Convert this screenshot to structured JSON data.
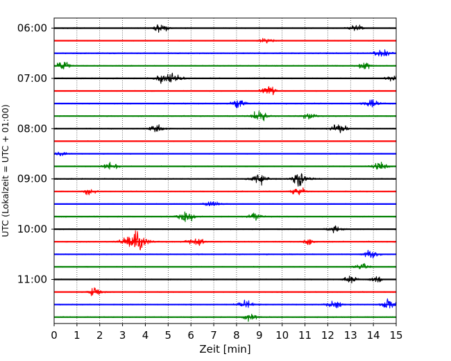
{
  "chart_data": {
    "type": "line",
    "title": "",
    "xlabel": "Zeit  [min]",
    "ylabel": "UTC (Lokalzeit = UTC + 01:00)",
    "xlim": [
      0,
      15
    ],
    "x_ticks": [
      0,
      1,
      2,
      3,
      4,
      5,
      6,
      7,
      8,
      9,
      10,
      11,
      12,
      13,
      14,
      15
    ],
    "y_tick_labels": [
      "06:00",
      "07:00",
      "08:00",
      "09:00",
      "10:00",
      "11:00"
    ],
    "grid": "vertical dotted lines at each minute",
    "trace_colors": [
      "#000000",
      "#ff0000",
      "#0000ff",
      "#008000"
    ],
    "traces": [
      {
        "start": "06:00",
        "color": "#000000",
        "amplitude": 0.22,
        "events": [
          [
            4.7,
            1.0
          ],
          [
            13.2,
            0.8
          ]
        ]
      },
      {
        "start": "06:15",
        "color": "#ff0000",
        "amplitude": 0.2,
        "events": [
          [
            9.3,
            0.8
          ]
        ]
      },
      {
        "start": "06:30",
        "color": "#0000ff",
        "amplitude": 0.28,
        "events": [
          [
            14.4,
            1.0
          ]
        ]
      },
      {
        "start": "06:45",
        "color": "#008000",
        "amplitude": 0.24,
        "events": [
          [
            0.4,
            1.0
          ],
          [
            13.6,
            0.8
          ]
        ]
      },
      {
        "start": "07:00",
        "color": "#000000",
        "amplitude": 0.26,
        "events": [
          [
            4.8,
            1.2
          ],
          [
            5.3,
            1.0
          ],
          [
            14.9,
            0.8
          ]
        ]
      },
      {
        "start": "07:15",
        "color": "#ff0000",
        "amplitude": 0.22,
        "events": [
          [
            9.4,
            1.0
          ]
        ]
      },
      {
        "start": "07:30",
        "color": "#0000ff",
        "amplitude": 0.28,
        "events": [
          [
            8.1,
            1.0
          ],
          [
            13.9,
            1.0
          ]
        ]
      },
      {
        "start": "07:45",
        "color": "#008000",
        "amplitude": 0.26,
        "events": [
          [
            9.0,
            1.3
          ],
          [
            11.2,
            0.8
          ]
        ]
      },
      {
        "start": "08:00",
        "color": "#000000",
        "amplitude": 0.22,
        "events": [
          [
            4.5,
            1.0
          ],
          [
            12.5,
            1.0
          ]
        ]
      },
      {
        "start": "08:15",
        "color": "#ff0000",
        "amplitude": 0.2,
        "events": []
      },
      {
        "start": "08:30",
        "color": "#0000ff",
        "amplitude": 0.22,
        "events": [
          [
            0.3,
            0.6
          ]
        ]
      },
      {
        "start": "08:45",
        "color": "#008000",
        "amplitude": 0.26,
        "events": [
          [
            2.5,
            1.0
          ],
          [
            14.3,
            1.0
          ]
        ]
      },
      {
        "start": "09:00",
        "color": "#000000",
        "amplitude": 0.26,
        "events": [
          [
            9.0,
            1.2
          ],
          [
            10.8,
            1.6
          ]
        ]
      },
      {
        "start": "09:15",
        "color": "#ff0000",
        "amplitude": 0.22,
        "events": [
          [
            1.5,
            0.8
          ],
          [
            10.7,
            1.0
          ]
        ]
      },
      {
        "start": "09:30",
        "color": "#0000ff",
        "amplitude": 0.22,
        "events": [
          [
            6.9,
            0.8
          ]
        ]
      },
      {
        "start": "09:45",
        "color": "#008000",
        "amplitude": 0.26,
        "events": [
          [
            5.8,
            1.2
          ],
          [
            8.8,
            0.8
          ]
        ]
      },
      {
        "start": "10:00",
        "color": "#000000",
        "amplitude": 0.24,
        "events": [
          [
            12.3,
            0.8
          ]
        ]
      },
      {
        "start": "10:15",
        "color": "#ff0000",
        "amplitude": 0.28,
        "events": [
          [
            3.6,
            2.4
          ],
          [
            6.2,
            1.2
          ],
          [
            11.2,
            0.6
          ]
        ]
      },
      {
        "start": "10:30",
        "color": "#0000ff",
        "amplitude": 0.24,
        "events": [
          [
            13.9,
            1.0
          ]
        ]
      },
      {
        "start": "10:45",
        "color": "#008000",
        "amplitude": 0.22,
        "events": [
          [
            13.5,
            0.8
          ]
        ]
      },
      {
        "start": "11:00",
        "color": "#000000",
        "amplitude": 0.24,
        "events": [
          [
            13.0,
            0.8
          ],
          [
            14.1,
            0.8
          ]
        ]
      },
      {
        "start": "11:15",
        "color": "#ff0000",
        "amplitude": 0.24,
        "events": [
          [
            1.8,
            1.0
          ]
        ]
      },
      {
        "start": "11:30",
        "color": "#0000ff",
        "amplitude": 0.24,
        "events": [
          [
            8.4,
            1.0
          ],
          [
            12.3,
            1.0
          ],
          [
            14.7,
            1.2
          ]
        ]
      },
      {
        "start": "11:45",
        "color": "#008000",
        "amplitude": 0.24,
        "events": [
          [
            8.6,
            0.8
          ]
        ]
      }
    ]
  }
}
